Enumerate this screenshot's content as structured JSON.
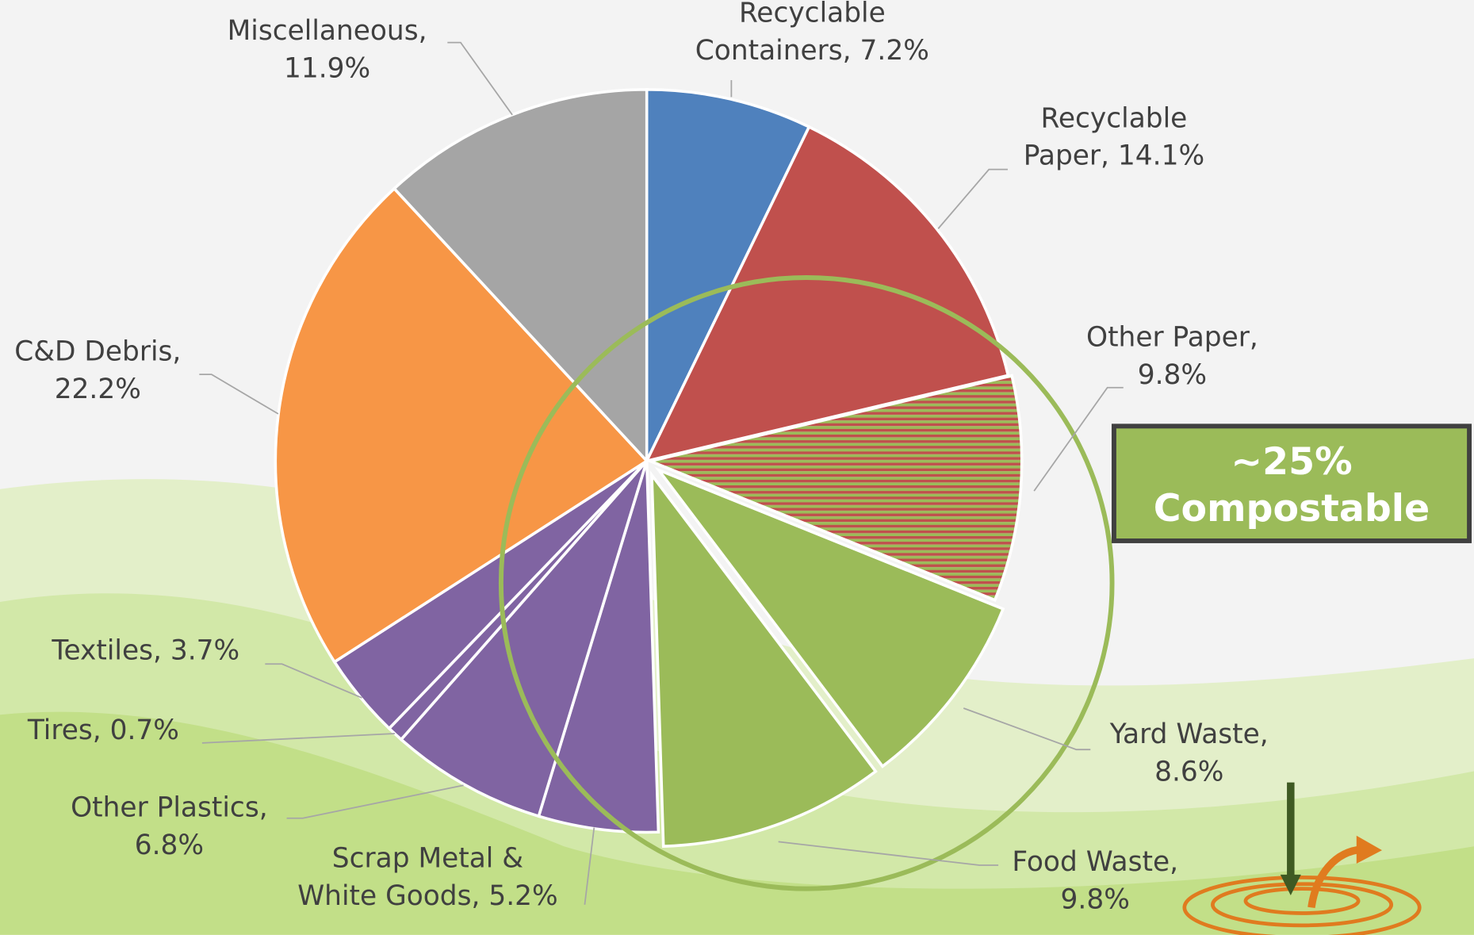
{
  "chart_data": {
    "type": "pie",
    "values": [
      7.2,
      14.1,
      9.8,
      8.6,
      9.8,
      5.2,
      6.8,
      0.7,
      3.7,
      22.2,
      11.9
    ],
    "value_labels": [
      [
        "Recyclable",
        "Containers, 7.2%"
      ],
      [
        "Recyclable",
        "Paper, 14.1%"
      ],
      [
        "Other Paper,",
        "9.8%"
      ],
      [
        "Yard Waste,",
        "8.6%"
      ],
      [
        "Food Waste,",
        "9.8%"
      ],
      [
        "Scrap Metal &",
        "White Goods, 5.2%"
      ],
      [
        "Other Plastics,",
        "6.8%"
      ],
      [
        "Tires, 0.7%"
      ],
      [
        "Textiles, 3.7%"
      ],
      [
        "C&D Debris,",
        "22.2%"
      ],
      [
        "Miscellaneous,",
        "11.9%"
      ]
    ],
    "colors": [
      "#4f81bd",
      "#c0504d",
      "#c0504d",
      "#9bbb59",
      "#9bbb59",
      "#8064a2",
      "#8064a2",
      "#8064a2",
      "#8064a2",
      "#f79646",
      "#a5a5a5"
    ],
    "hatched_slices": [
      2
    ],
    "hatch_color": "#9bbb59",
    "annotation": [
      "~25%",
      "Compostable"
    ]
  }
}
